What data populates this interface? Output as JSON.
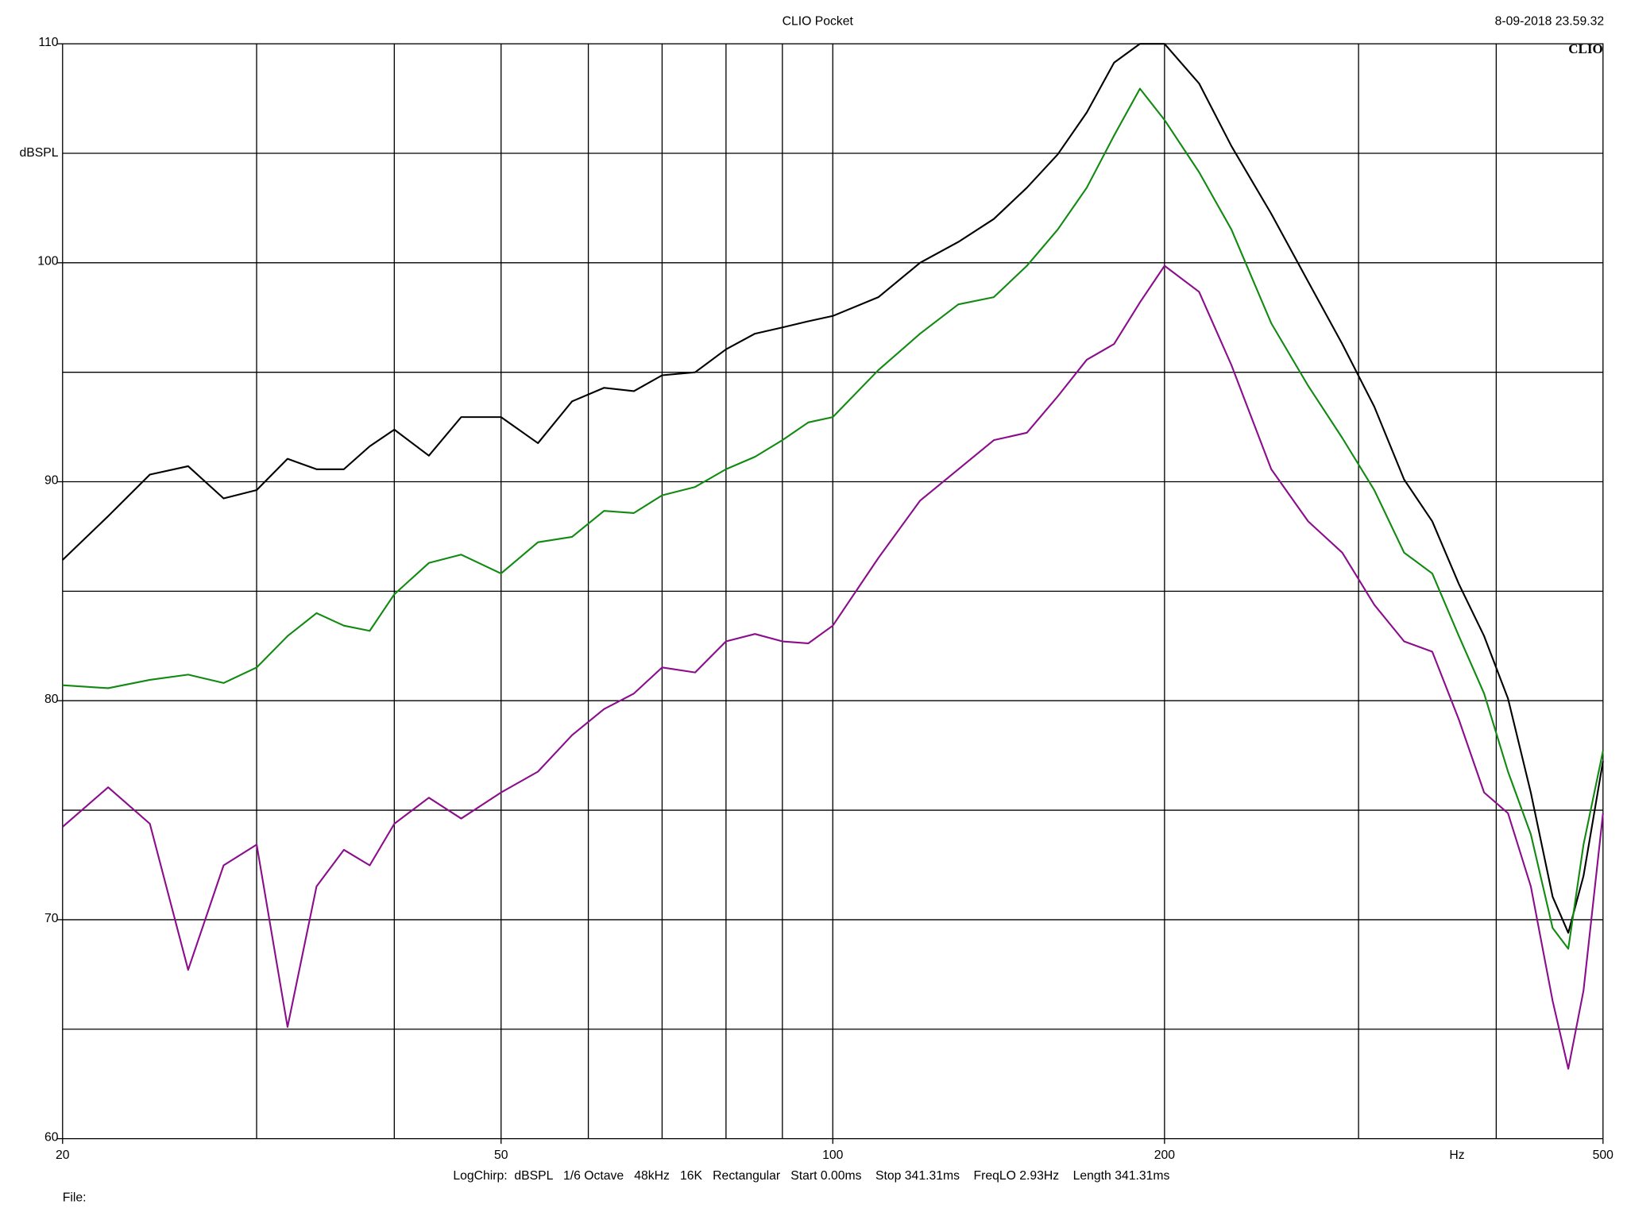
{
  "chart_data": {
    "type": "line",
    "title": "CLIO Pocket",
    "timestamp": "8-09-2018 23.59.32",
    "logo": "CLIO",
    "y_label": "dBSPL",
    "x_label": "Hz",
    "footer": "LogChirp:  dBSPL   1/6 Octave   48kHz   16K   Rectangular   Start 0.00ms    Stop 341.31ms    FreqLO 2.93Hz    Length 341.31ms",
    "file_label": "File:",
    "x_log": true,
    "xlim": [
      20,
      500
    ],
    "ylim": [
      60,
      110
    ],
    "xticks": [
      20,
      50,
      100,
      200,
      500
    ],
    "x_grid": [
      30,
      40,
      50,
      60,
      70,
      80,
      90,
      100,
      200,
      300,
      400
    ],
    "yticks": [
      60,
      70,
      80,
      90,
      100,
      110
    ],
    "y_grid": [
      65,
      70,
      75,
      80,
      85,
      90,
      95,
      100,
      105
    ],
    "x": [
      20,
      22,
      24,
      26,
      28,
      30,
      32,
      34,
      36,
      38,
      40,
      43,
      46,
      50,
      54,
      58,
      62,
      66,
      70,
      75,
      80,
      85,
      90,
      95,
      100,
      110,
      120,
      130,
      140,
      150,
      160,
      170,
      180,
      190,
      200,
      215,
      230,
      250,
      270,
      290,
      310,
      330,
      350,
      370,
      390,
      410,
      430,
      450,
      465,
      480,
      500
    ],
    "series": [
      {
        "color": "#000000",
        "values": [
          86.43,
          88.43,
          90.33,
          90.71,
          89.24,
          89.62,
          91.05,
          90.57,
          90.57,
          91.62,
          92.38,
          91.19,
          92.95,
          92.95,
          91.76,
          93.67,
          94.29,
          94.14,
          94.86,
          95.0,
          96.05,
          96.76,
          97.05,
          97.33,
          97.57,
          98.43,
          100.0,
          100.95,
          102.0,
          103.43,
          104.95,
          106.86,
          109.14,
          110,
          110,
          108.19,
          105.33,
          102.24,
          99.14,
          96.29,
          93.43,
          90.1,
          88.19,
          85.33,
          82.95,
          80.1,
          75.8,
          71.05,
          69.4,
          72.0,
          77.24
        ]
      },
      {
        "color": "#118a11",
        "values": [
          80.71,
          80.57,
          80.95,
          81.19,
          80.81,
          81.52,
          82.95,
          84.0,
          83.43,
          83.19,
          84.86,
          86.29,
          86.67,
          85.81,
          87.24,
          87.48,
          88.67,
          88.57,
          89.38,
          89.76,
          90.57,
          91.14,
          91.9,
          92.71,
          92.95,
          95.1,
          96.76,
          98.1,
          98.43,
          99.86,
          101.52,
          103.43,
          105.81,
          107.95,
          106.52,
          104.14,
          101.52,
          97.24,
          94.38,
          92.0,
          89.62,
          86.76,
          85.81,
          82.95,
          80.33,
          76.76,
          73.9,
          69.62,
          68.67,
          73.43,
          77.71
        ]
      },
      {
        "color": "#8b0d8b",
        "values": [
          74.24,
          76.05,
          74.38,
          67.71,
          72.48,
          73.43,
          65.1,
          71.52,
          73.19,
          72.48,
          74.38,
          75.57,
          74.62,
          75.81,
          76.76,
          78.43,
          79.62,
          80.33,
          81.52,
          81.29,
          82.71,
          83.05,
          82.71,
          82.62,
          83.43,
          86.52,
          89.14,
          90.57,
          91.9,
          92.24,
          93.9,
          95.57,
          96.29,
          98.19,
          99.86,
          98.67,
          95.33,
          90.57,
          88.19,
          86.76,
          84.38,
          82.71,
          82.24,
          79.14,
          75.81,
          74.86,
          71.52,
          66.29,
          63.19,
          66.76,
          74.86
        ]
      }
    ]
  }
}
